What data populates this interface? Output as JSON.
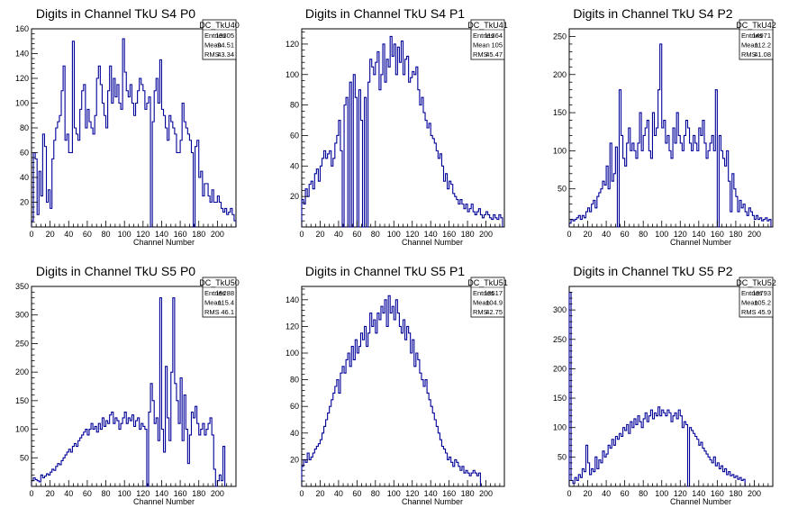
{
  "colors": {
    "histogram": "#000099",
    "axis": "#000000",
    "background": "#ffffff"
  },
  "chart_data": [
    {
      "type": "histogram",
      "title": "Digits in Channel TkU S4 P0",
      "xlabel": "Channel Number",
      "xlim": [
        0,
        220
      ],
      "ylim": [
        0,
        160
      ],
      "xticks": [
        0,
        20,
        40,
        60,
        80,
        100,
        120,
        140,
        160,
        180,
        200
      ],
      "yticks": [
        20,
        40,
        60,
        80,
        100,
        120,
        140,
        160
      ],
      "stats": {
        "name": "DC_TkU40",
        "entries": "13305",
        "mean": "94.51",
        "rms": "43.34"
      },
      "bin_width": 2,
      "values": [
        5,
        60,
        55,
        10,
        45,
        25,
        75,
        65,
        20,
        30,
        15,
        55,
        70,
        80,
        85,
        90,
        110,
        130,
        70,
        75,
        60,
        60,
        150,
        80,
        75,
        70,
        95,
        110,
        115,
        80,
        95,
        85,
        80,
        75,
        90,
        120,
        130,
        115,
        100,
        90,
        80,
        110,
        130,
        100,
        120,
        105,
        115,
        100,
        95,
        152,
        125,
        110,
        105,
        115,
        100,
        90,
        100,
        110,
        120,
        115,
        110,
        95,
        100,
        105,
        0,
        85,
        110,
        120,
        100,
        135,
        95,
        90,
        80,
        70,
        90,
        85,
        80,
        75,
        60,
        60,
        70,
        100,
        85,
        80,
        75,
        70,
        60,
        0,
        65,
        70,
        40,
        45,
        25,
        35,
        35,
        25,
        20,
        30,
        20,
        20,
        25,
        20,
        15,
        12,
        15,
        10,
        12,
        15,
        10,
        5
      ]
    },
    {
      "type": "histogram",
      "title": "Digits in Channel TkU S4 P1",
      "xlabel": "Channel Number",
      "xlim": [
        0,
        220
      ],
      "ylim": [
        0,
        130
      ],
      "xticks": [
        0,
        20,
        40,
        60,
        80,
        100,
        120,
        140,
        160,
        180,
        200
      ],
      "yticks": [
        20,
        40,
        60,
        80,
        100,
        120
      ],
      "stats": {
        "name": "DC_TkU41",
        "entries": "11364",
        "mean": "105",
        "rms": "45.47"
      },
      "bin_width": 2,
      "values": [
        18,
        15,
        25,
        20,
        28,
        30,
        25,
        35,
        38,
        30,
        40,
        45,
        50,
        45,
        48,
        50,
        40,
        45,
        55,
        60,
        70,
        50,
        0,
        80,
        85,
        0,
        95,
        0,
        100,
        85,
        0,
        90,
        70,
        0,
        85,
        0,
        95,
        110,
        105,
        100,
        108,
        115,
        90,
        100,
        120,
        95,
        110,
        105,
        125,
        112,
        120,
        100,
        118,
        108,
        122,
        100,
        110,
        112,
        95,
        98,
        102,
        100,
        105,
        90,
        80,
        85,
        75,
        70,
        65,
        68,
        60,
        58,
        55,
        50,
        45,
        48,
        40,
        30,
        35,
        25,
        30,
        28,
        22,
        20,
        18,
        15,
        18,
        15,
        12,
        15,
        10,
        12,
        15,
        10,
        8,
        10,
        12,
        8,
        6,
        8,
        10,
        8,
        6,
        5,
        8,
        6,
        5,
        8,
        6
      ]
    },
    {
      "type": "histogram",
      "title": "Digits in Channel TkU S4 P2",
      "xlabel": "Channel Number",
      "xlim": [
        0,
        220
      ],
      "ylim": [
        0,
        260
      ],
      "xticks": [
        0,
        20,
        40,
        60,
        80,
        100,
        120,
        140,
        160,
        180,
        200
      ],
      "yticks": [
        50,
        100,
        150,
        200,
        250
      ],
      "stats": {
        "name": "DC_TkU42",
        "entries": "14971",
        "mean": "112.2",
        "rms": "41.08"
      },
      "bin_width": 2,
      "values": [
        5,
        10,
        8,
        10,
        12,
        15,
        10,
        15,
        12,
        20,
        25,
        20,
        30,
        35,
        25,
        40,
        45,
        50,
        60,
        55,
        80,
        50,
        110,
        60,
        70,
        105,
        0,
        180,
        120,
        90,
        80,
        110,
        130,
        100,
        110,
        100,
        90,
        110,
        150,
        100,
        120,
        130,
        140,
        100,
        90,
        150,
        120,
        130,
        180,
        240,
        130,
        140,
        110,
        120,
        100,
        90,
        130,
        110,
        150,
        120,
        110,
        100,
        120,
        140,
        130,
        110,
        100,
        120,
        110,
        100,
        130,
        120,
        140,
        110,
        90,
        100,
        110,
        120,
        100,
        180,
        0,
        120,
        100,
        90,
        80,
        100,
        60,
        20,
        70,
        50,
        40,
        20,
        35,
        25,
        30,
        20,
        15,
        25,
        20,
        15,
        10,
        15,
        10,
        12,
        8,
        10,
        12,
        8,
        10
      ]
    },
    {
      "type": "histogram",
      "title": "Digits in Channel TkU S5 P0",
      "xlabel": "Channel Number",
      "xlim": [
        0,
        220
      ],
      "ylim": [
        0,
        350
      ],
      "xticks": [
        0,
        20,
        40,
        60,
        80,
        100,
        120,
        140,
        160,
        180,
        200
      ],
      "yticks": [
        50,
        100,
        150,
        200,
        250,
        300,
        350
      ],
      "stats": {
        "name": "DC_TkU50",
        "entries": "15288",
        "mean": "115.4",
        "rms": "46.1"
      },
      "bin_width": 2,
      "values": [
        10,
        15,
        12,
        10,
        8,
        20,
        15,
        18,
        22,
        20,
        25,
        30,
        28,
        35,
        40,
        38,
        45,
        50,
        55,
        60,
        65,
        60,
        70,
        75,
        70,
        80,
        85,
        90,
        95,
        100,
        90,
        100,
        110,
        100,
        105,
        95,
        110,
        100,
        120,
        105,
        115,
        110,
        125,
        130,
        110,
        120,
        115,
        100,
        110,
        120,
        130,
        110,
        120,
        115,
        125,
        105,
        115,
        120,
        100,
        110,
        105,
        100,
        0,
        130,
        180,
        150,
        110,
        120,
        80,
        330,
        100,
        60,
        210,
        120,
        80,
        200,
        330,
        180,
        150,
        110,
        190,
        80,
        160,
        100,
        40,
        90,
        130,
        120,
        140,
        110,
        90,
        100,
        110,
        90,
        100,
        110,
        120,
        90,
        30,
        0,
        10,
        20,
        10,
        70
      ]
    },
    {
      "type": "histogram",
      "title": "Digits in Channel TkU S5 P1",
      "xlabel": "Channel Number",
      "xlim": [
        0,
        220
      ],
      "ylim": [
        0,
        150
      ],
      "xticks": [
        0,
        20,
        40,
        60,
        80,
        100,
        120,
        140,
        160,
        180,
        200
      ],
      "yticks": [
        20,
        40,
        60,
        80,
        100,
        120,
        140
      ],
      "stats": {
        "name": "DC_TkU51",
        "entries": "13517",
        "mean": "104.9",
        "rms": "42.75"
      },
      "bin_width": 2,
      "values": [
        15,
        20,
        18,
        25,
        20,
        22,
        25,
        28,
        30,
        32,
        35,
        40,
        45,
        50,
        55,
        60,
        65,
        70,
        75,
        80,
        70,
        85,
        90,
        85,
        95,
        100,
        90,
        105,
        95,
        110,
        100,
        105,
        115,
        110,
        120,
        105,
        115,
        130,
        120,
        125,
        115,
        130,
        125,
        135,
        130,
        140,
        120,
        143,
        130,
        135,
        125,
        140,
        130,
        120,
        115,
        125,
        110,
        120,
        115,
        100,
        110,
        90,
        100,
        95,
        85,
        80,
        75,
        80,
        70,
        65,
        60,
        55,
        50,
        45,
        40,
        35,
        30,
        28,
        25,
        20,
        22,
        18,
        15,
        20,
        18,
        15,
        12,
        15,
        10,
        12,
        10,
        8,
        10,
        12,
        10,
        8,
        10
      ]
    },
    {
      "type": "histogram",
      "title": "Digits in Channel TkU S5 P2",
      "xlabel": "Channel Number",
      "xlim": [
        0,
        220
      ],
      "ylim": [
        0,
        340
      ],
      "xticks": [
        0,
        20,
        40,
        60,
        80,
        100,
        120,
        140,
        160,
        180,
        200
      ],
      "yticks": [
        50,
        100,
        150,
        200,
        250,
        300
      ],
      "stats": {
        "name": "DC_TkU52",
        "entries": "13793",
        "mean": "105.2",
        "rms": "45.9"
      },
      "bin_width": 2,
      "values": [
        330,
        10,
        5,
        15,
        10,
        20,
        15,
        30,
        25,
        70,
        40,
        20,
        30,
        25,
        50,
        30,
        45,
        40,
        60,
        50,
        55,
        70,
        65,
        80,
        70,
        85,
        80,
        90,
        85,
        100,
        95,
        105,
        90,
        110,
        100,
        115,
        105,
        120,
        110,
        100,
        115,
        125,
        110,
        120,
        130,
        115,
        125,
        120,
        135,
        120,
        130,
        125,
        120,
        130,
        125,
        110,
        120,
        125,
        115,
        130,
        120,
        100,
        110,
        105,
        0,
        100,
        95,
        90,
        85,
        80,
        70,
        75,
        65,
        60,
        55,
        50,
        45,
        40,
        50,
        35,
        40,
        30,
        35,
        25,
        30,
        20,
        25,
        18,
        20,
        15,
        18,
        12,
        15,
        10,
        12
      ]
    }
  ]
}
